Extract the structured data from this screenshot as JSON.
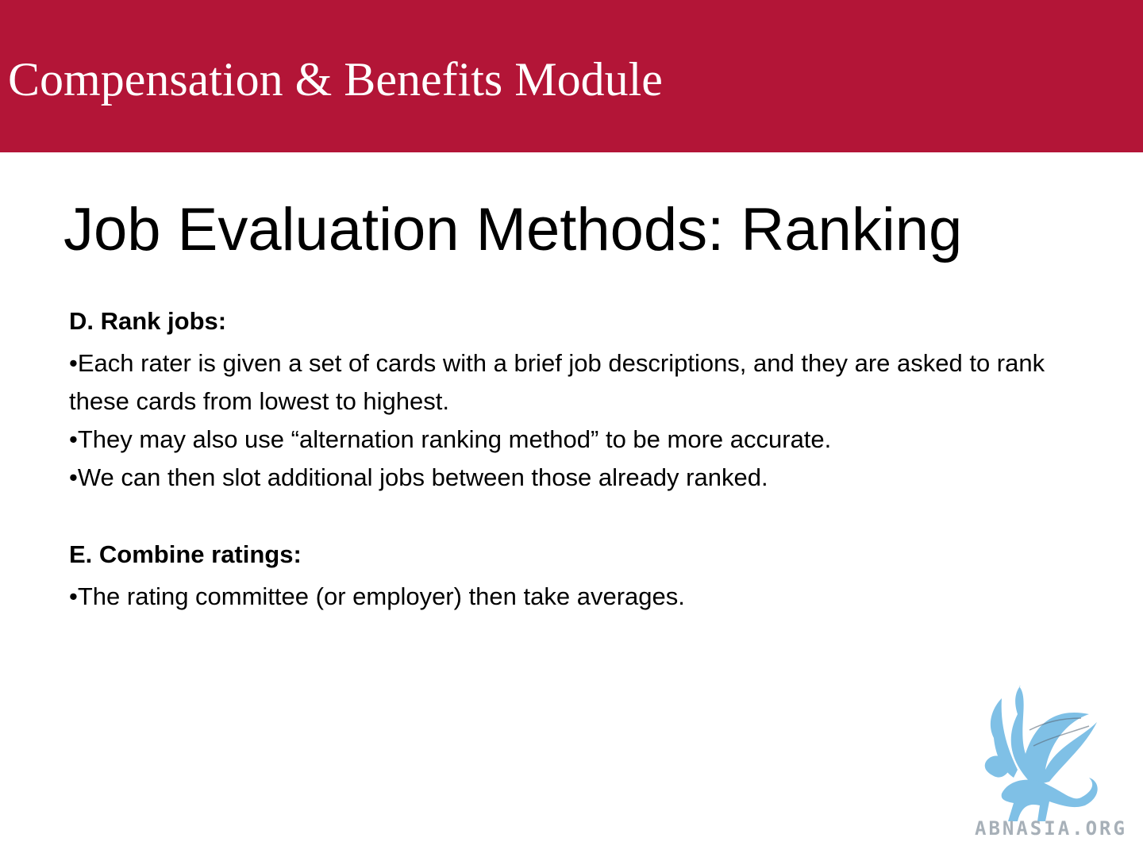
{
  "header": {
    "module_title": "Compensation & Benefits Module",
    "band_color": "#b31537"
  },
  "slide": {
    "title": "Job Evaluation Methods: Ranking",
    "sections": [
      {
        "heading": "D. Rank jobs:",
        "bullets": [
          "•Each rater is given a set of cards with a brief job descriptions, and they are asked to rank these cards from lowest to highest.",
          "•They may also use “alternation ranking method” to be more accurate.",
          "•We can then slot additional jobs between those already ranked."
        ]
      },
      {
        "heading": "E. Combine ratings:",
        "bullets": [
          "•The rating committee (or employer) then take averages."
        ]
      }
    ]
  },
  "logo": {
    "icon": "griffin-logo-icon",
    "text": "ABNASIA.ORG",
    "color": "#7fc0e6"
  }
}
